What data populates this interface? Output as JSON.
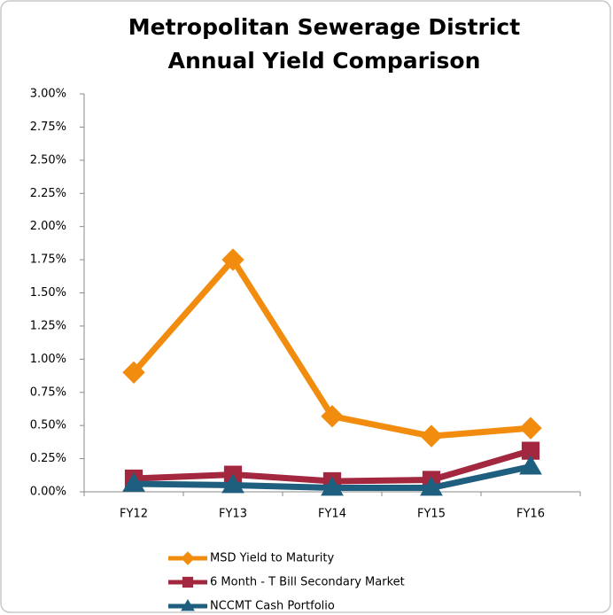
{
  "chart_data": {
    "type": "line",
    "title": [
      "Metropolitan Sewerage District",
      "Annual Yield Comparison"
    ],
    "categories": [
      "FY12",
      "FY13",
      "FY14",
      "FY15",
      "FY16"
    ],
    "series": [
      {
        "name": "MSD Yield to Maturity",
        "color": "#f28c0f",
        "marker": "diamond",
        "values": [
          0.9,
          1.75,
          0.57,
          0.42,
          0.48
        ]
      },
      {
        "name": "6 Month - T Bill Secondary Market",
        "color": "#a3283f",
        "marker": "square",
        "values": [
          0.1,
          0.13,
          0.08,
          0.09,
          0.31
        ]
      },
      {
        "name": "NCCMT Cash Portfolio",
        "color": "#1e5e7e",
        "marker": "triangle",
        "values": [
          0.06,
          0.05,
          0.03,
          0.03,
          0.19
        ]
      }
    ],
    "ylim": [
      0,
      3
    ],
    "yticks": [
      {
        "value": 0,
        "label": "0.00%"
      },
      {
        "value": 0.25,
        "label": "0.25%"
      },
      {
        "value": 0.5,
        "label": "0.50%"
      },
      {
        "value": 0.75,
        "label": "0.75%"
      },
      {
        "value": 1,
        "label": "1.00%"
      },
      {
        "value": 1.25,
        "label": "1.25%"
      },
      {
        "value": 1.5,
        "label": "1.50%"
      },
      {
        "value": 1.75,
        "label": "1.75%"
      },
      {
        "value": 2,
        "label": "2.00%"
      },
      {
        "value": 2.25,
        "label": "2.25%"
      },
      {
        "value": 2.5,
        "label": "2.50%"
      },
      {
        "value": 2.75,
        "label": "2.75%"
      },
      {
        "value": 3,
        "label": "3.00%"
      }
    ],
    "grid": false,
    "legend": "bottom"
  }
}
